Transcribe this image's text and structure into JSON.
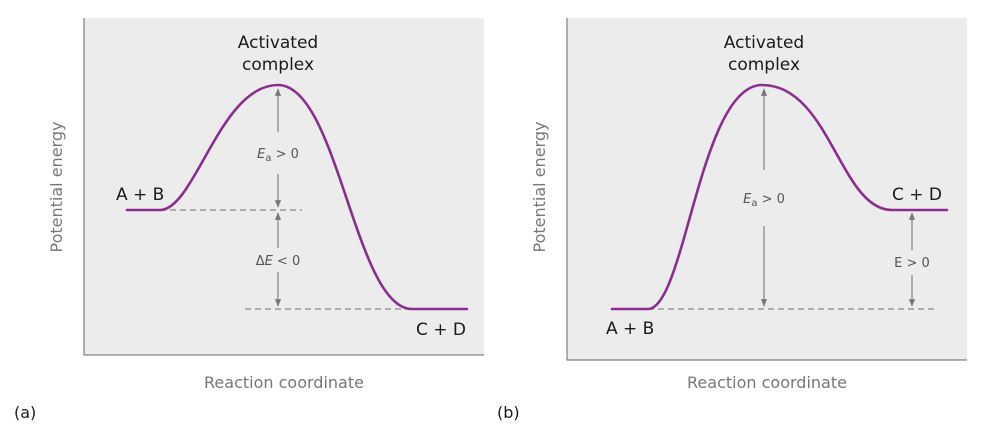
{
  "panel_a": {
    "tag": "(a)",
    "peak_label_line1": "Activated",
    "peak_label_line2": "complex",
    "reactant_label": "A + B",
    "product_label": "C + D",
    "ea_sym": "E",
    "ea_sub": "a",
    "ea_rel": " > 0",
    "de_sym": "Δ",
    "de_var": "E",
    "de_rel": " < 0",
    "y_axis_label": "Potential energy",
    "x_axis_label": "Reaction coordinate"
  },
  "panel_b": {
    "tag": "(b)",
    "peak_label_line1": "Activated",
    "peak_label_line2": "complex",
    "reactant_label": "A + B",
    "product_label": "C + D",
    "ea_sym": "E",
    "ea_sub": "a",
    "ea_rel": " > 0",
    "e_label": "E > 0",
    "y_axis_label": "Potential energy",
    "x_axis_label": "Reaction coordinate"
  },
  "colors": {
    "curve": "#8b2d8e",
    "panel_background": "#ececec",
    "arrow": "#777777"
  }
}
